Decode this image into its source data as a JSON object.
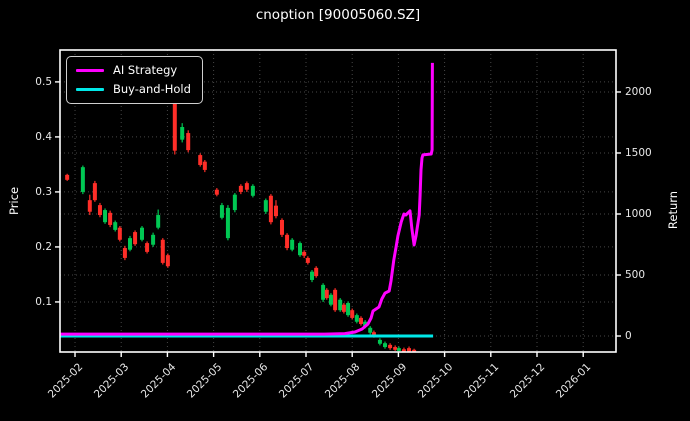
{
  "title": "cnoption [90005060.SZ]",
  "chart_data": {
    "type": "candlestick+line",
    "title": "cnoption [90005060.SZ]",
    "ylabel_left": "Price",
    "ylabel_right": "Return",
    "x_unit": "months since 2025-02-01",
    "x_tick_labels": [
      "2025-02",
      "2025-03",
      "2025-04",
      "2025-05",
      "2025-06",
      "2025-07",
      "2025-08",
      "2025-09",
      "2025-10",
      "2025-11",
      "2025-12",
      "2026-01"
    ],
    "x_tick_positions": [
      0,
      1,
      2,
      3,
      4,
      5,
      6,
      7,
      8,
      9,
      10,
      11
    ],
    "xlim": [
      -0.325,
      11.71
    ],
    "price_axis": {
      "ticks": [
        0.1,
        0.2,
        0.3,
        0.4,
        0.5
      ],
      "tick_labels": [
        "0.1",
        "0.2",
        "0.3",
        "0.4",
        "0.5"
      ],
      "lim": [
        0.009,
        0.558
      ]
    },
    "return_axis": {
      "ticks": [
        0,
        500,
        1000,
        1500,
        2000
      ],
      "tick_labels": [
        "0",
        "500",
        "1000",
        "1500",
        "2000"
      ],
      "lim": [
        -131,
        2344
      ]
    },
    "grid": {
      "on": true,
      "style": "dotted",
      "color": "#474747"
    },
    "background_color": "#000000",
    "spine_color": "#ffffff",
    "legend_position": "upper left",
    "candles": {
      "up_color": "#00c853",
      "down_color": "#ff2e28",
      "ohlc_format": [
        "x_month_index",
        "open",
        "high",
        "low",
        "close"
      ],
      "ohlc": [
        [
          -0.17,
          0.331,
          0.333,
          0.32,
          0.322
        ],
        [
          0.17,
          0.3,
          0.348,
          0.296,
          0.345
        ],
        [
          0.32,
          0.285,
          0.295,
          0.258,
          0.264
        ],
        [
          0.43,
          0.316,
          0.32,
          0.282,
          0.285
        ],
        [
          0.54,
          0.276,
          0.28,
          0.254,
          0.258
        ],
        [
          0.65,
          0.245,
          0.27,
          0.242,
          0.267
        ],
        [
          0.76,
          0.262,
          0.266,
          0.236,
          0.24
        ],
        [
          0.87,
          0.231,
          0.248,
          0.228,
          0.245
        ],
        [
          0.97,
          0.235,
          0.238,
          0.21,
          0.213
        ],
        [
          1.08,
          0.198,
          0.202,
          0.176,
          0.18
        ],
        [
          1.19,
          0.195,
          0.22,
          0.192,
          0.216
        ],
        [
          1.3,
          0.227,
          0.23,
          0.202,
          0.205
        ],
        [
          1.45,
          0.213,
          0.238,
          0.21,
          0.235
        ],
        [
          1.56,
          0.207,
          0.21,
          0.188,
          0.191
        ],
        [
          1.69,
          0.204,
          0.226,
          0.2,
          0.222
        ],
        [
          1.8,
          0.235,
          0.268,
          0.232,
          0.258
        ],
        [
          1.9,
          0.213,
          0.216,
          0.168,
          0.171
        ],
        [
          2.01,
          0.185,
          0.188,
          0.162,
          0.165
        ],
        [
          2.16,
          0.49,
          0.505,
          0.368,
          0.375
        ],
        [
          2.32,
          0.395,
          0.425,
          0.39,
          0.418
        ],
        [
          2.45,
          0.407,
          0.412,
          0.372,
          0.376
        ],
        [
          2.71,
          0.367,
          0.37,
          0.346,
          0.349
        ],
        [
          2.81,
          0.355,
          0.358,
          0.336,
          0.34
        ],
        [
          3.07,
          0.304,
          0.307,
          0.292,
          0.295
        ],
        [
          3.18,
          0.253,
          0.28,
          0.25,
          0.276
        ],
        [
          3.31,
          0.216,
          0.276,
          0.212,
          0.271
        ],
        [
          3.46,
          0.267,
          0.298,
          0.263,
          0.295
        ],
        [
          3.59,
          0.311,
          0.314,
          0.296,
          0.3
        ],
        [
          3.72,
          0.316,
          0.319,
          0.3,
          0.304
        ],
        [
          3.85,
          0.293,
          0.314,
          0.29,
          0.311
        ],
        [
          4.13,
          0.264,
          0.288,
          0.26,
          0.285
        ],
        [
          4.24,
          0.293,
          0.296,
          0.241,
          0.245
        ],
        [
          4.35,
          0.275,
          0.285,
          0.252,
          0.256
        ],
        [
          4.48,
          0.249,
          0.252,
          0.218,
          0.222
        ],
        [
          4.59,
          0.222,
          0.225,
          0.194,
          0.198
        ],
        [
          4.7,
          0.195,
          0.216,
          0.192,
          0.213
        ],
        [
          4.87,
          0.185,
          0.21,
          0.182,
          0.207
        ],
        [
          4.96,
          0.191,
          0.194,
          0.18,
          0.184
        ],
        [
          5.04,
          0.18,
          0.183,
          0.168,
          0.171
        ],
        [
          5.13,
          0.14,
          0.158,
          0.136,
          0.155
        ],
        [
          5.22,
          0.162,
          0.165,
          0.144,
          0.147
        ],
        [
          5.37,
          0.104,
          0.134,
          0.1,
          0.131
        ],
        [
          5.45,
          0.122,
          0.125,
          0.104,
          0.107
        ],
        [
          5.54,
          0.095,
          0.116,
          0.092,
          0.113
        ],
        [
          5.63,
          0.122,
          0.125,
          0.082,
          0.085
        ],
        [
          5.74,
          0.085,
          0.107,
          0.082,
          0.104
        ],
        [
          5.82,
          0.095,
          0.098,
          0.079,
          0.082
        ],
        [
          5.91,
          0.076,
          0.101,
          0.073,
          0.098
        ],
        [
          6.0,
          0.085,
          0.088,
          0.068,
          0.071
        ],
        [
          6.1,
          0.064,
          0.079,
          0.061,
          0.076
        ],
        [
          6.19,
          0.071,
          0.074,
          0.057,
          0.06
        ],
        [
          6.28,
          0.055,
          0.067,
          0.052,
          0.064
        ],
        [
          6.39,
          0.044,
          0.056,
          0.041,
          0.053
        ],
        [
          6.47,
          0.045,
          0.048,
          0.035,
          0.038
        ],
        [
          6.6,
          0.024,
          0.034,
          0.021,
          0.031
        ],
        [
          6.71,
          0.018,
          0.028,
          0.015,
          0.025
        ],
        [
          6.82,
          0.022,
          0.025,
          0.013,
          0.016
        ],
        [
          6.93,
          0.018,
          0.021,
          0.011,
          0.013
        ],
        [
          7.01,
          0.011,
          0.019,
          0.009,
          0.016
        ],
        [
          7.12,
          0.014,
          0.017,
          0.009,
          0.01
        ],
        [
          7.23,
          0.016,
          0.019,
          0.009,
          0.01
        ],
        [
          7.34,
          0.013,
          0.015,
          0.009,
          0.01
        ]
      ]
    },
    "series": [
      {
        "name": "AI Strategy",
        "color": "#ff00ff",
        "axis": "return",
        "points": [
          [
            -0.32,
            16
          ],
          [
            2,
            16
          ],
          [
            4,
            16
          ],
          [
            5.4,
            16
          ],
          [
            5.84,
            20
          ],
          [
            6.06,
            33
          ],
          [
            6.21,
            57
          ],
          [
            6.34,
            98
          ],
          [
            6.41,
            148
          ],
          [
            6.45,
            205
          ],
          [
            6.58,
            238
          ],
          [
            6.64,
            303
          ],
          [
            6.71,
            352
          ],
          [
            6.8,
            369
          ],
          [
            6.84,
            451
          ],
          [
            6.9,
            623
          ],
          [
            6.95,
            730
          ],
          [
            6.99,
            820
          ],
          [
            7.06,
            934
          ],
          [
            7.12,
            1000
          ],
          [
            7.16,
            992
          ],
          [
            7.25,
            1025
          ],
          [
            7.29,
            885
          ],
          [
            7.34,
            746
          ],
          [
            7.38,
            820
          ],
          [
            7.4,
            869
          ],
          [
            7.45,
            992
          ],
          [
            7.47,
            1156
          ],
          [
            7.49,
            1361
          ],
          [
            7.51,
            1459
          ],
          [
            7.53,
            1484
          ],
          [
            7.71,
            1492
          ],
          [
            7.73,
            1525
          ],
          [
            7.735,
            2238
          ]
        ]
      },
      {
        "name": "Buy-and-Hold",
        "color": "#00e8e8",
        "axis": "return",
        "points": [
          [
            -0.325,
            0
          ],
          [
            7.75,
            0
          ]
        ]
      }
    ]
  }
}
